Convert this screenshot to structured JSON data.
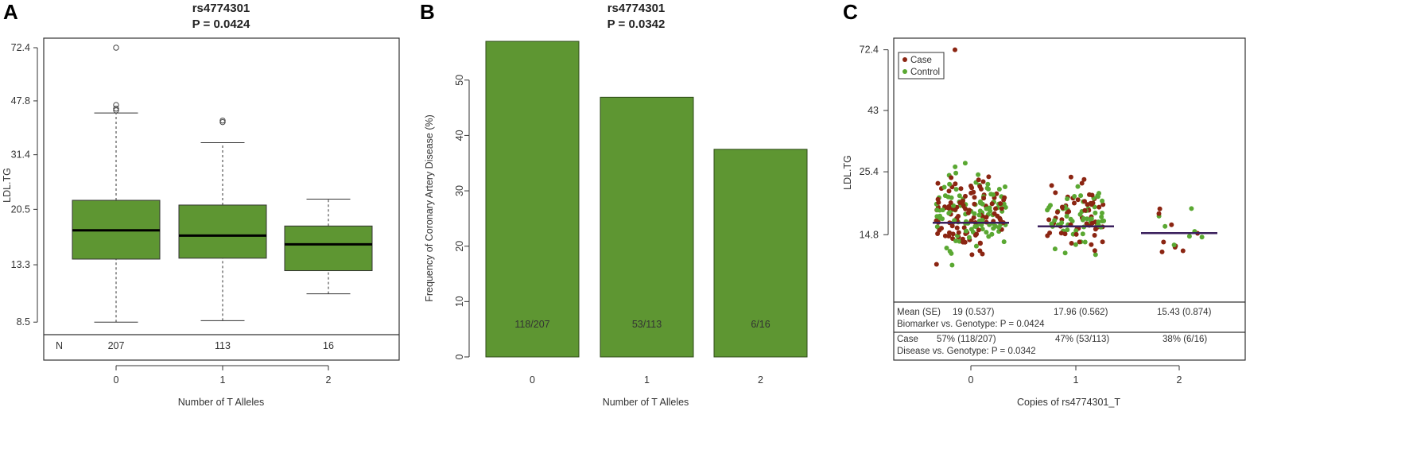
{
  "colors": {
    "box_fill": "#5e9632",
    "bar_fill": "#5e9632",
    "case": "#8b2512",
    "control": "#5aa832",
    "mean_line": "#3a1f5c"
  },
  "chart_data": [
    {
      "panel": "A",
      "type": "box",
      "title": "rs4774301",
      "subtitle": "P = 0.0424",
      "xlabel": "Number of T Alleles",
      "ylabel": "LDL.TG",
      "yscale": "log",
      "ylim": [
        8.0,
        78.0
      ],
      "yticks": [
        "8.5",
        "13.3",
        "20.5",
        "31.4",
        "47.8",
        "72.4"
      ],
      "categories": [
        "0",
        "1",
        "2"
      ],
      "boxes": [
        {
          "category": "0",
          "whisker_low": 8.5,
          "q1": 13.9,
          "median": 17.4,
          "q3": 22.0,
          "whisker_high": 43.5,
          "outliers": [
            45.0,
            46.3,
            44.4,
            72.4
          ]
        },
        {
          "category": "1",
          "whisker_low": 8.6,
          "q1": 14.0,
          "median": 16.7,
          "q3": 21.2,
          "whisker_high": 34.5,
          "outliers": [
            40.5,
            41.0
          ]
        },
        {
          "category": "2",
          "whisker_low": 10.6,
          "q1": 12.7,
          "median": 15.6,
          "q3": 18.0,
          "whisker_high": 22.2,
          "outliers": []
        }
      ],
      "n_label": "N",
      "n_values": [
        "207",
        "113",
        "16"
      ]
    },
    {
      "panel": "B",
      "type": "bar",
      "title": "rs4774301",
      "subtitle": "P = 0.0342",
      "xlabel": "Number of T Alleles",
      "ylabel": "Frequency of Coronary Artery Disease (%)",
      "ylim": [
        0,
        57
      ],
      "yticks": [
        "0",
        "10",
        "20",
        "30",
        "40",
        "50"
      ],
      "categories": [
        "0",
        "1",
        "2"
      ],
      "values": [
        57.0,
        46.9,
        37.5
      ],
      "bar_labels": [
        "118/207",
        "53/113",
        "6/16"
      ]
    },
    {
      "panel": "C",
      "type": "scatter",
      "xlabel": "Copies of rs4774301_T",
      "ylabel": "LDL.TG",
      "yscale": "log",
      "ylim": [
        8.3,
        80.0
      ],
      "yticks": [
        "14.8",
        "25.4",
        "43",
        "72.4"
      ],
      "categories": [
        "0",
        "1",
        "2"
      ],
      "group_means": [
        16.4,
        15.9,
        15.0
      ],
      "legend": {
        "position": "top-left",
        "items": [
          {
            "label": "Case",
            "color_key": "case"
          },
          {
            "label": "Control",
            "color_key": "control"
          }
        ]
      },
      "series": [
        {
          "name": "Case",
          "color_key": "case"
        },
        {
          "name": "Control",
          "color_key": "control"
        }
      ],
      "summary": {
        "mean_label": "Mean (SE)",
        "means": [
          "19 (0.537)",
          "17.96 (0.562)",
          "15.43 (0.874)"
        ],
        "biomarker_test": "Biomarker vs. Genotype: P = 0.0424",
        "case_label": "Case",
        "case_pct": [
          "57% (118/207)",
          "47% (53/113)",
          "38% (6/16)"
        ],
        "disease_test": "Disease vs. Genotype: P = 0.0342"
      }
    }
  ]
}
